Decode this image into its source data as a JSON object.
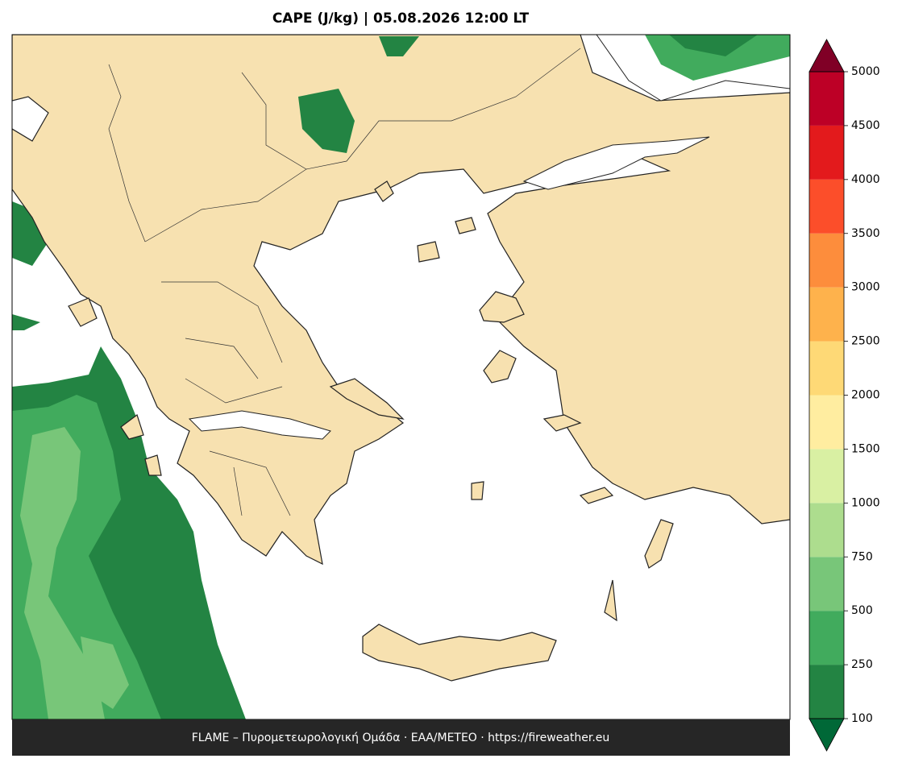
{
  "header": {
    "title": "CAPE (J/kg)  |  05.08.2026 12:00 LT"
  },
  "colorbar": {
    "levels": [
      100,
      250,
      500,
      750,
      1000,
      1500,
      2000,
      2500,
      3000,
      3500,
      4000,
      4500,
      5000
    ],
    "colors": [
      "#238443",
      "#41ab5d",
      "#78c679",
      "#addd8e",
      "#d9f0a3",
      "#ffeda0",
      "#fed976",
      "#feb24c",
      "#fd8d3c",
      "#fc4e2a",
      "#e31a1c",
      "#bd0026"
    ],
    "under_color": "#006837",
    "over_color": "#800026"
  },
  "footer": {
    "text": "FLAME – Πυρομετεωρολογική Ομάδα · ΕΑΑ/METEO · https://fireweather.eu"
  }
}
